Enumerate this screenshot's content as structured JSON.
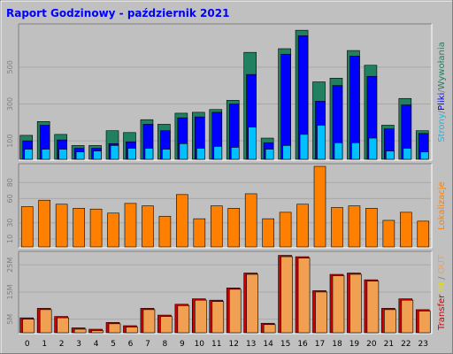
{
  "chart_data": {
    "type": "bar",
    "title": "Raport Godzinowy -  październik 2021",
    "categories": [
      "0",
      "1",
      "2",
      "3",
      "4",
      "5",
      "6",
      "7",
      "8",
      "9",
      "10",
      "11",
      "12",
      "13",
      "14",
      "15",
      "16",
      "17",
      "18",
      "19",
      "20",
      "21",
      "22",
      "23"
    ],
    "colors": {
      "background": "#c0c0c0",
      "title": "#0000ff",
      "strony": "#00c0ff",
      "pliki": "#0000ff",
      "wywolania": "#208060",
      "lokalizacje": "#ff8000",
      "in": "#f0a050",
      "out": "#d00000",
      "label_gray": "#808080",
      "label_yellow": "#e0e000"
    },
    "panels": [
      {
        "id": "hits",
        "ylim": [
          0,
          720
        ],
        "ticks": [
          {
            "value": 100,
            "label": "100"
          },
          {
            "value": 300,
            "label": "300"
          },
          {
            "value": 500,
            "label": "500"
          }
        ],
        "legend_parts": [
          {
            "text": "Strony",
            "color": "#00c0ff"
          },
          {
            "text": "/",
            "color": "#808080"
          },
          {
            "text": "Pliki",
            "color": "#0000ff"
          },
          {
            "text": "/",
            "color": "#808080"
          },
          {
            "text": "Wywołania",
            "color": "#208060"
          }
        ],
        "series": [
          {
            "name": "Wywołania",
            "color": "#208060",
            "values": [
              130,
              205,
              135,
              75,
              75,
              155,
              145,
              215,
              190,
              250,
              255,
              270,
              320,
              580,
              115,
              600,
              700,
              420,
              440,
              590,
              510,
              185,
              330,
              155
            ]
          },
          {
            "name": "Pliki",
            "color": "#0000ff",
            "values": [
              100,
              185,
              105,
              60,
              60,
              85,
              95,
              190,
              155,
              225,
              230,
              255,
              300,
              460,
              90,
              570,
              670,
              315,
              400,
              560,
              450,
              165,
              295,
              140
            ]
          },
          {
            "name": "Strony",
            "color": "#00c0ff",
            "values": [
              55,
              55,
              55,
              40,
              45,
              75,
              60,
              60,
              55,
              85,
              60,
              70,
              65,
              175,
              55,
              75,
              135,
              185,
              90,
              90,
              115,
              45,
              60,
              40
            ]
          }
        ]
      },
      {
        "id": "locations",
        "ylim": [
          0,
          100
        ],
        "ticks": [
          {
            "value": 10,
            "label": "10"
          },
          {
            "value": 30,
            "label": "30"
          },
          {
            "value": 60,
            "label": "60"
          },
          {
            "value": 80,
            "label": "80"
          }
        ],
        "legend_parts": [
          {
            "text": "Lokalizacje",
            "color": "#ff8000"
          }
        ],
        "series": [
          {
            "name": "Lokalizacje",
            "color": "#ff8000",
            "values": [
              50,
              58,
              53,
              48,
              47,
              42,
              54,
              51,
              38,
              65,
              35,
              51,
              48,
              66,
              35,
              43,
              53,
              100,
              49,
              51,
              48,
              33,
              43,
              32
            ]
          }
        ]
      },
      {
        "id": "transfer",
        "ylim": [
          0,
          29
        ],
        "ticks": [
          {
            "value": 5,
            "label": "5M"
          },
          {
            "value": 15,
            "label": "15M"
          },
          {
            "value": 25,
            "label": "25M"
          }
        ],
        "legend_parts": [
          {
            "text": "Transfer",
            "color": "#d00000"
          },
          {
            "text": " IN",
            "color": "#e0e000"
          },
          {
            "text": " / ",
            "color": "#808080"
          },
          {
            "text": "OUT",
            "color": "#f0a050"
          }
        ],
        "series": [
          {
            "name": "IN",
            "color": "#f0a050",
            "values": [
              5.5,
              9,
              6,
              1.8,
              1.3,
              3.8,
              2.6,
              9,
              6.5,
              10.5,
              12.5,
              12,
              16.5,
              22,
              3.5,
              28.5,
              28,
              15.5,
              21.5,
              22,
              19.5,
              9,
              12.5,
              8.5
            ]
          },
          {
            "name": "OUT",
            "color": "#d00000",
            "values": [
              5.5,
              9,
              6,
              1.8,
              1.3,
              3.8,
              2.6,
              9,
              6.5,
              10.5,
              12.5,
              12,
              16.5,
              22,
              3.5,
              28.5,
              28,
              15.5,
              21.5,
              22,
              19.5,
              9,
              12.5,
              8.5
            ]
          }
        ]
      }
    ]
  }
}
